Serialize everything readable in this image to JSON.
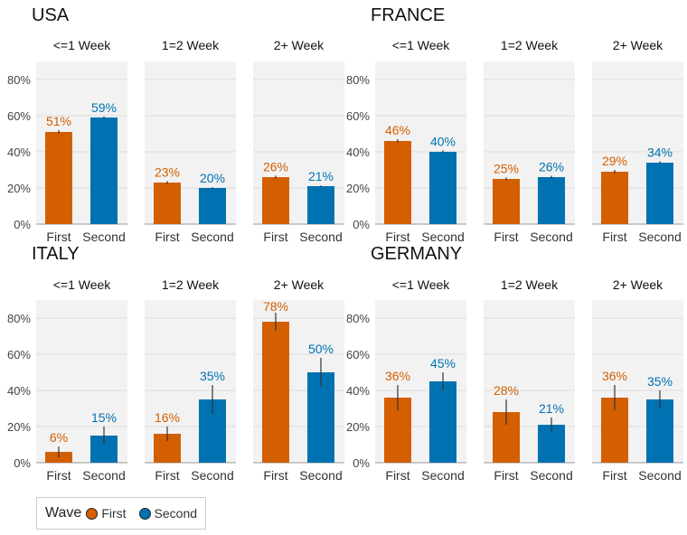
{
  "chart_data": {
    "type": "bar",
    "ylim": [
      0,
      90
    ],
    "yticks": [
      "0%",
      "20%",
      "40%",
      "60%",
      "80%"
    ],
    "yticks_values": [
      0,
      20,
      40,
      60,
      80
    ],
    "categories": [
      "First",
      "Second"
    ],
    "colors": {
      "First": "#d35f00",
      "Second": "#0072b2"
    },
    "legend": {
      "title": "Wave",
      "items": [
        "First",
        "Second"
      ],
      "placement": "bottom-left"
    },
    "panel_titles": [
      "<=1 Week",
      "1=2 Week",
      "2+ Week"
    ],
    "countries": [
      {
        "name": "USA",
        "panels": [
          {
            "title": "<=1 Week",
            "values": [
              51,
              59
            ],
            "labels": [
              "51%",
              "59%"
            ],
            "err": [
              1,
              0.5
            ]
          },
          {
            "title": "1=2 Week",
            "values": [
              23,
              20
            ],
            "labels": [
              "23%",
              "20%"
            ],
            "err": [
              0.8,
              0.4
            ]
          },
          {
            "title": "2+ Week",
            "values": [
              26,
              21
            ],
            "labels": [
              "26%",
              "21%"
            ],
            "err": [
              0.8,
              0.4
            ]
          }
        ]
      },
      {
        "name": "FRANCE",
        "panels": [
          {
            "title": "<=1 Week",
            "values": [
              46,
              40
            ],
            "labels": [
              "46%",
              "40%"
            ],
            "err": [
              1,
              0.8
            ]
          },
          {
            "title": "1=2 Week",
            "values": [
              25,
              26
            ],
            "labels": [
              "25%",
              "26%"
            ],
            "err": [
              0.8,
              0.8
            ]
          },
          {
            "title": "2+ Week",
            "values": [
              29,
              34
            ],
            "labels": [
              "29%",
              "34%"
            ],
            "err": [
              1,
              0.8
            ]
          }
        ]
      },
      {
        "name": "ITALY",
        "panels": [
          {
            "title": "<=1 Week",
            "values": [
              6,
              15
            ],
            "labels": [
              "6%",
              "15%"
            ],
            "err": [
              3,
              5
            ]
          },
          {
            "title": "1=2 Week",
            "values": [
              16,
              35
            ],
            "labels": [
              "16%",
              "35%"
            ],
            "err": [
              4,
              8
            ]
          },
          {
            "title": "2+ Week",
            "values": [
              78,
              50
            ],
            "labels": [
              "78%",
              "50%"
            ],
            "err": [
              5,
              8
            ]
          }
        ]
      },
      {
        "name": "GERMANY",
        "panels": [
          {
            "title": "<=1 Week",
            "values": [
              36,
              45
            ],
            "labels": [
              "36%",
              "45%"
            ],
            "err": [
              7,
              5
            ]
          },
          {
            "title": "1=2 Week",
            "values": [
              28,
              21
            ],
            "labels": [
              "28%",
              "21%"
            ],
            "err": [
              7,
              4
            ]
          },
          {
            "title": "2+ Week",
            "values": [
              36,
              35
            ],
            "labels": [
              "36%",
              "35%"
            ],
            "err": [
              7,
              5
            ]
          }
        ]
      }
    ]
  }
}
